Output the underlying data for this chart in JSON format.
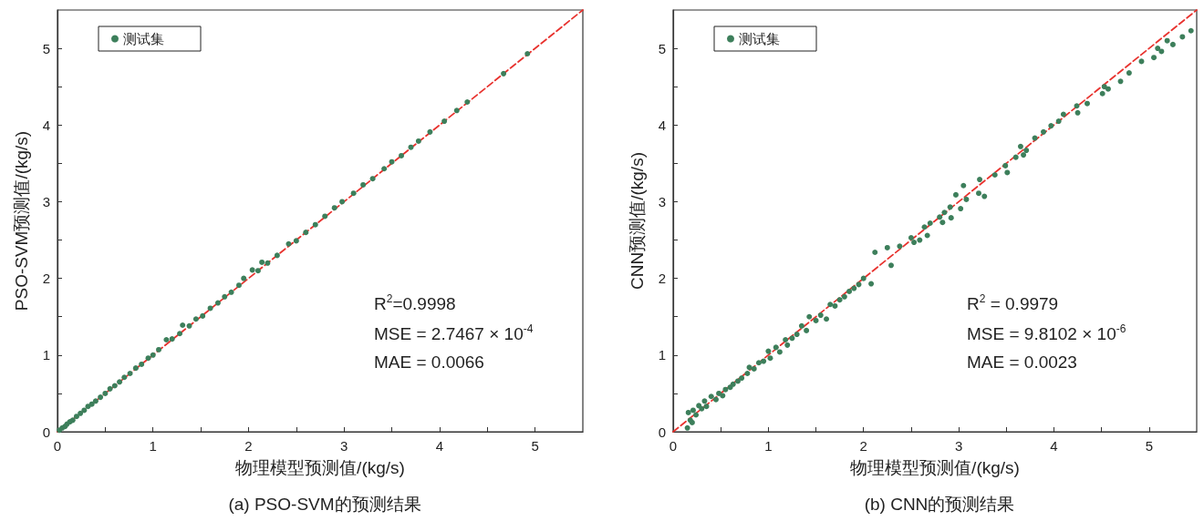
{
  "chart_data": [
    {
      "type": "scatter",
      "title": "(a) PSO-SVM的预测结果",
      "xlabel": "物理模型预测值/(kg/s)",
      "ylabel": "PSO-SVM预测值/(kg/s)",
      "annotations": [
        "R$^{2}$=0.9998",
        "MSE = 2.7467 × 10$^{-4}$",
        "MAE = 0.0066"
      ],
      "xlim": [
        0,
        5.5
      ],
      "ylim": [
        0,
        5.5
      ],
      "xticks": [
        0,
        {
          "value": 0.5,
          "label": null
        },
        1,
        {
          "value": 1.5,
          "label": null
        },
        2,
        {
          "value": 2.5,
          "label": null
        },
        3,
        {
          "value": 3.5,
          "label": null
        },
        4,
        {
          "value": 4.5,
          "label": null
        },
        5
      ],
      "yticks": [
        0,
        {
          "value": 0.5,
          "label": null
        },
        1,
        {
          "value": 1.5,
          "label": null
        },
        2,
        {
          "value": 2.5,
          "label": null
        },
        3,
        {
          "value": 3.5,
          "label": null
        },
        4,
        {
          "value": 4.5,
          "label": null
        },
        5
      ],
      "legend": "top left",
      "marker": "circle",
      "series": [
        {
          "name": "测试集",
          "color": "#3d7f5b",
          "x": [
            0.02,
            0.05,
            0.08,
            0.1,
            0.13,
            0.16,
            0.2,
            0.24,
            0.28,
            0.32,
            0.36,
            0.4,
            0.45,
            0.5,
            0.55,
            0.6,
            0.65,
            0.7,
            0.76,
            0.82,
            0.88,
            0.95,
            1.0,
            1.06,
            1.14,
            1.2,
            1.28,
            1.31,
            1.38,
            1.45,
            1.52,
            1.6,
            1.68,
            1.75,
            1.82,
            1.9,
            1.95,
            2.04,
            2.1,
            2.14,
            2.2,
            2.3,
            2.42,
            2.5,
            2.6,
            2.7,
            2.8,
            2.9,
            2.98,
            3.1,
            3.2,
            3.3,
            3.42,
            3.5,
            3.6,
            3.7,
            3.78,
            3.9,
            4.05,
            4.18,
            4.29,
            4.67,
            4.92
          ],
          "values": [
            0.02,
            0.05,
            0.07,
            0.1,
            0.13,
            0.15,
            0.2,
            0.24,
            0.28,
            0.33,
            0.36,
            0.4,
            0.45,
            0.5,
            0.56,
            0.6,
            0.65,
            0.71,
            0.76,
            0.83,
            0.88,
            0.96,
            1.0,
            1.07,
            1.2,
            1.21,
            1.28,
            1.39,
            1.38,
            1.47,
            1.51,
            1.61,
            1.68,
            1.76,
            1.82,
            1.91,
            2.0,
            2.11,
            2.1,
            2.21,
            2.2,
            2.3,
            2.45,
            2.49,
            2.6,
            2.7,
            2.81,
            2.92,
            3.0,
            3.11,
            3.22,
            3.3,
            3.43,
            3.52,
            3.6,
            3.71,
            3.79,
            3.91,
            4.05,
            4.19,
            4.3,
            4.67,
            4.93
          ]
        },
        {
          "type": "line",
          "color": "#e8322e",
          "line_style": "dashed",
          "marker": "none",
          "x": [
            0,
            5.5
          ],
          "values": [
            0,
            5.5
          ]
        }
      ]
    },
    {
      "type": "scatter",
      "title": "(b) CNN的预测结果",
      "xlabel": "物理模型预测值/(kg/s)",
      "ylabel": "CNN预测值/(kg/s)",
      "annotations": [
        "R$^{2}$ = 0.9979",
        "MSE = 9.8102 × 10$^{-6}$",
        "MAE = 0.0023"
      ],
      "xlim": [
        0,
        5.5
      ],
      "ylim": [
        0,
        5.5
      ],
      "xticks": [
        0,
        {
          "value": 0.5,
          "label": null
        },
        1,
        {
          "value": 1.5,
          "label": null
        },
        2,
        {
          "value": 2.5,
          "label": null
        },
        3,
        {
          "value": 3.5,
          "label": null
        },
        4,
        {
          "value": 4.5,
          "label": null
        },
        5
      ],
      "yticks": [
        0,
        {
          "value": 0.5,
          "label": null
        },
        1,
        {
          "value": 1.5,
          "label": null
        },
        2,
        {
          "value": 2.5,
          "label": null
        },
        3,
        {
          "value": 3.5,
          "label": null
        },
        4,
        {
          "value": 4.5,
          "label": null
        },
        5
      ],
      "legend": "top left",
      "marker": "circle",
      "series": [
        {
          "name": "测试集",
          "color": "#3d7f5b",
          "x": [
            0.15,
            0.16,
            0.18,
            0.21,
            0.2,
            0.24,
            0.27,
            0.3,
            0.33,
            0.35,
            0.4,
            0.45,
            0.48,
            0.52,
            0.55,
            0.6,
            0.63,
            0.68,
            0.72,
            0.78,
            0.8,
            0.85,
            0.9,
            0.95,
            1.0,
            1.02,
            1.08,
            1.12,
            1.18,
            1.2,
            1.25,
            1.3,
            1.35,
            1.4,
            1.43,
            1.5,
            1.55,
            1.61,
            1.65,
            1.7,
            1.75,
            1.8,
            1.85,
            1.9,
            1.95,
            2.0,
            2.08,
            2.12,
            2.25,
            2.29,
            2.38,
            2.5,
            2.53,
            2.59,
            2.64,
            2.67,
            2.7,
            2.8,
            2.83,
            2.85,
            2.91,
            2.92,
            2.97,
            3.02,
            3.05,
            3.08,
            3.21,
            3.22,
            3.27,
            3.38,
            3.49,
            3.51,
            3.6,
            3.65,
            3.68,
            3.71,
            3.8,
            3.89,
            3.97,
            4.05,
            4.1,
            4.24,
            4.25,
            4.35,
            4.51,
            4.53,
            4.57,
            4.7,
            4.79,
            4.92,
            5.05,
            5.09,
            5.13,
            5.19,
            5.25,
            5.35,
            5.44
          ],
          "values": [
            0.05,
            0.25,
            0.15,
            0.28,
            0.12,
            0.22,
            0.34,
            0.3,
            0.4,
            0.33,
            0.46,
            0.42,
            0.5,
            0.47,
            0.55,
            0.58,
            0.62,
            0.66,
            0.7,
            0.76,
            0.84,
            0.82,
            0.9,
            0.92,
            1.05,
            0.96,
            1.1,
            1.04,
            1.2,
            1.13,
            1.22,
            1.27,
            1.38,
            1.32,
            1.5,
            1.45,
            1.52,
            1.47,
            1.66,
            1.64,
            1.72,
            1.76,
            1.83,
            1.87,
            1.92,
            2.0,
            1.93,
            2.34,
            2.4,
            2.17,
            2.42,
            2.53,
            2.47,
            2.5,
            2.67,
            2.56,
            2.72,
            2.8,
            2.73,
            2.86,
            2.93,
            2.79,
            3.09,
            2.91,
            3.21,
            3.03,
            3.11,
            3.29,
            3.07,
            3.35,
            3.47,
            3.38,
            3.58,
            3.72,
            3.61,
            3.67,
            3.83,
            3.91,
            3.99,
            4.05,
            4.14,
            4.25,
            4.16,
            4.28,
            4.41,
            4.5,
            4.47,
            4.57,
            4.68,
            4.83,
            4.88,
            5.0,
            4.96,
            5.1,
            5.05,
            5.15,
            5.23
          ]
        },
        {
          "type": "line",
          "color": "#e8322e",
          "line_style": "dashed",
          "marker": "none",
          "x": [
            0,
            5.5
          ],
          "values": [
            0,
            5.5
          ]
        }
      ]
    }
  ]
}
